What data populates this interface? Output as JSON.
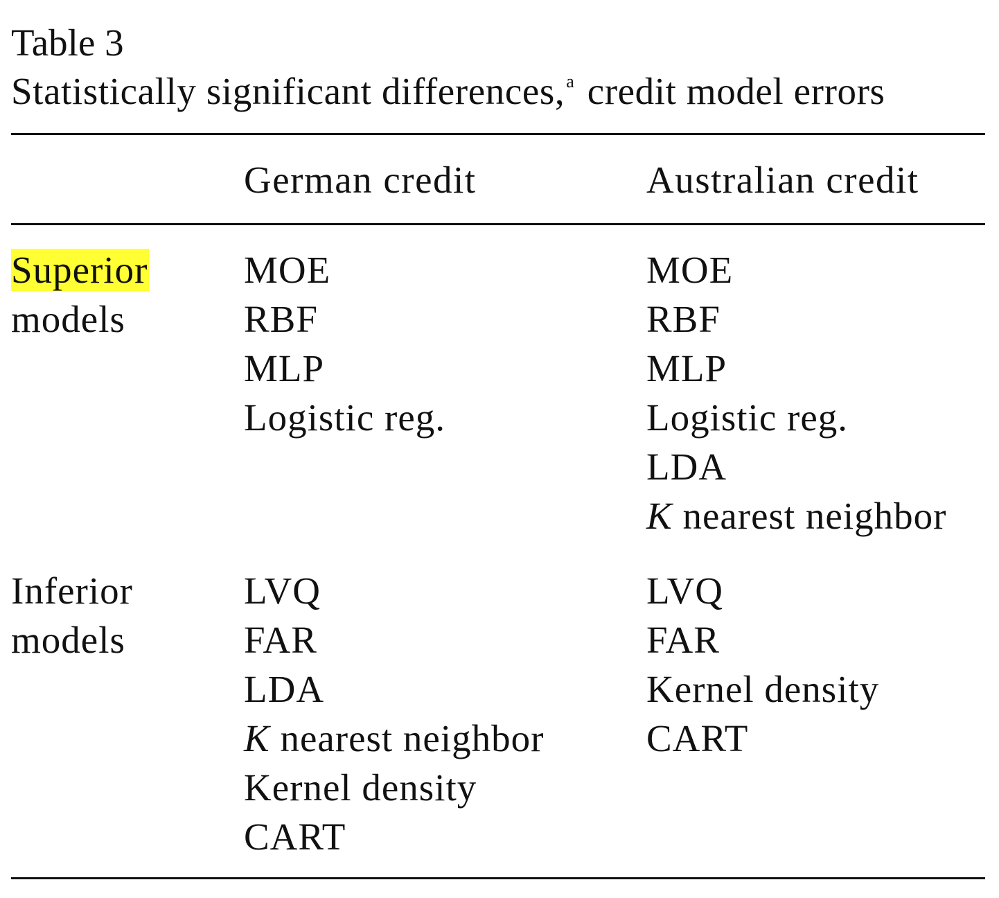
{
  "table": {
    "caption_number": "Table 3",
    "caption_title": "Statistically significant differences,",
    "caption_footnote_marker": "a",
    "caption_title_rest": "credit model errors",
    "columns": [
      "German credit",
      "Australian credit"
    ],
    "sections": [
      {
        "label_line1": "Superior",
        "label_line2": "models",
        "label_line1_highlighted": true,
        "german": [
          "MOE",
          "RBF",
          "MLP",
          "Logistic reg."
        ],
        "australian": [
          "MOE",
          "RBF",
          "MLP",
          "Logistic reg.",
          "LDA",
          "K nearest neighbor"
        ]
      },
      {
        "label_line1": "Inferior",
        "label_line2": "models",
        "german": [
          "LVQ",
          "FAR",
          "LDA",
          "K nearest neighbor",
          "Kernel density",
          "CART"
        ],
        "australian": [
          "LVQ",
          "FAR",
          "Kernel density",
          "CART"
        ]
      }
    ]
  },
  "colors": {
    "highlight": "#ffff33",
    "text": "#111111"
  }
}
